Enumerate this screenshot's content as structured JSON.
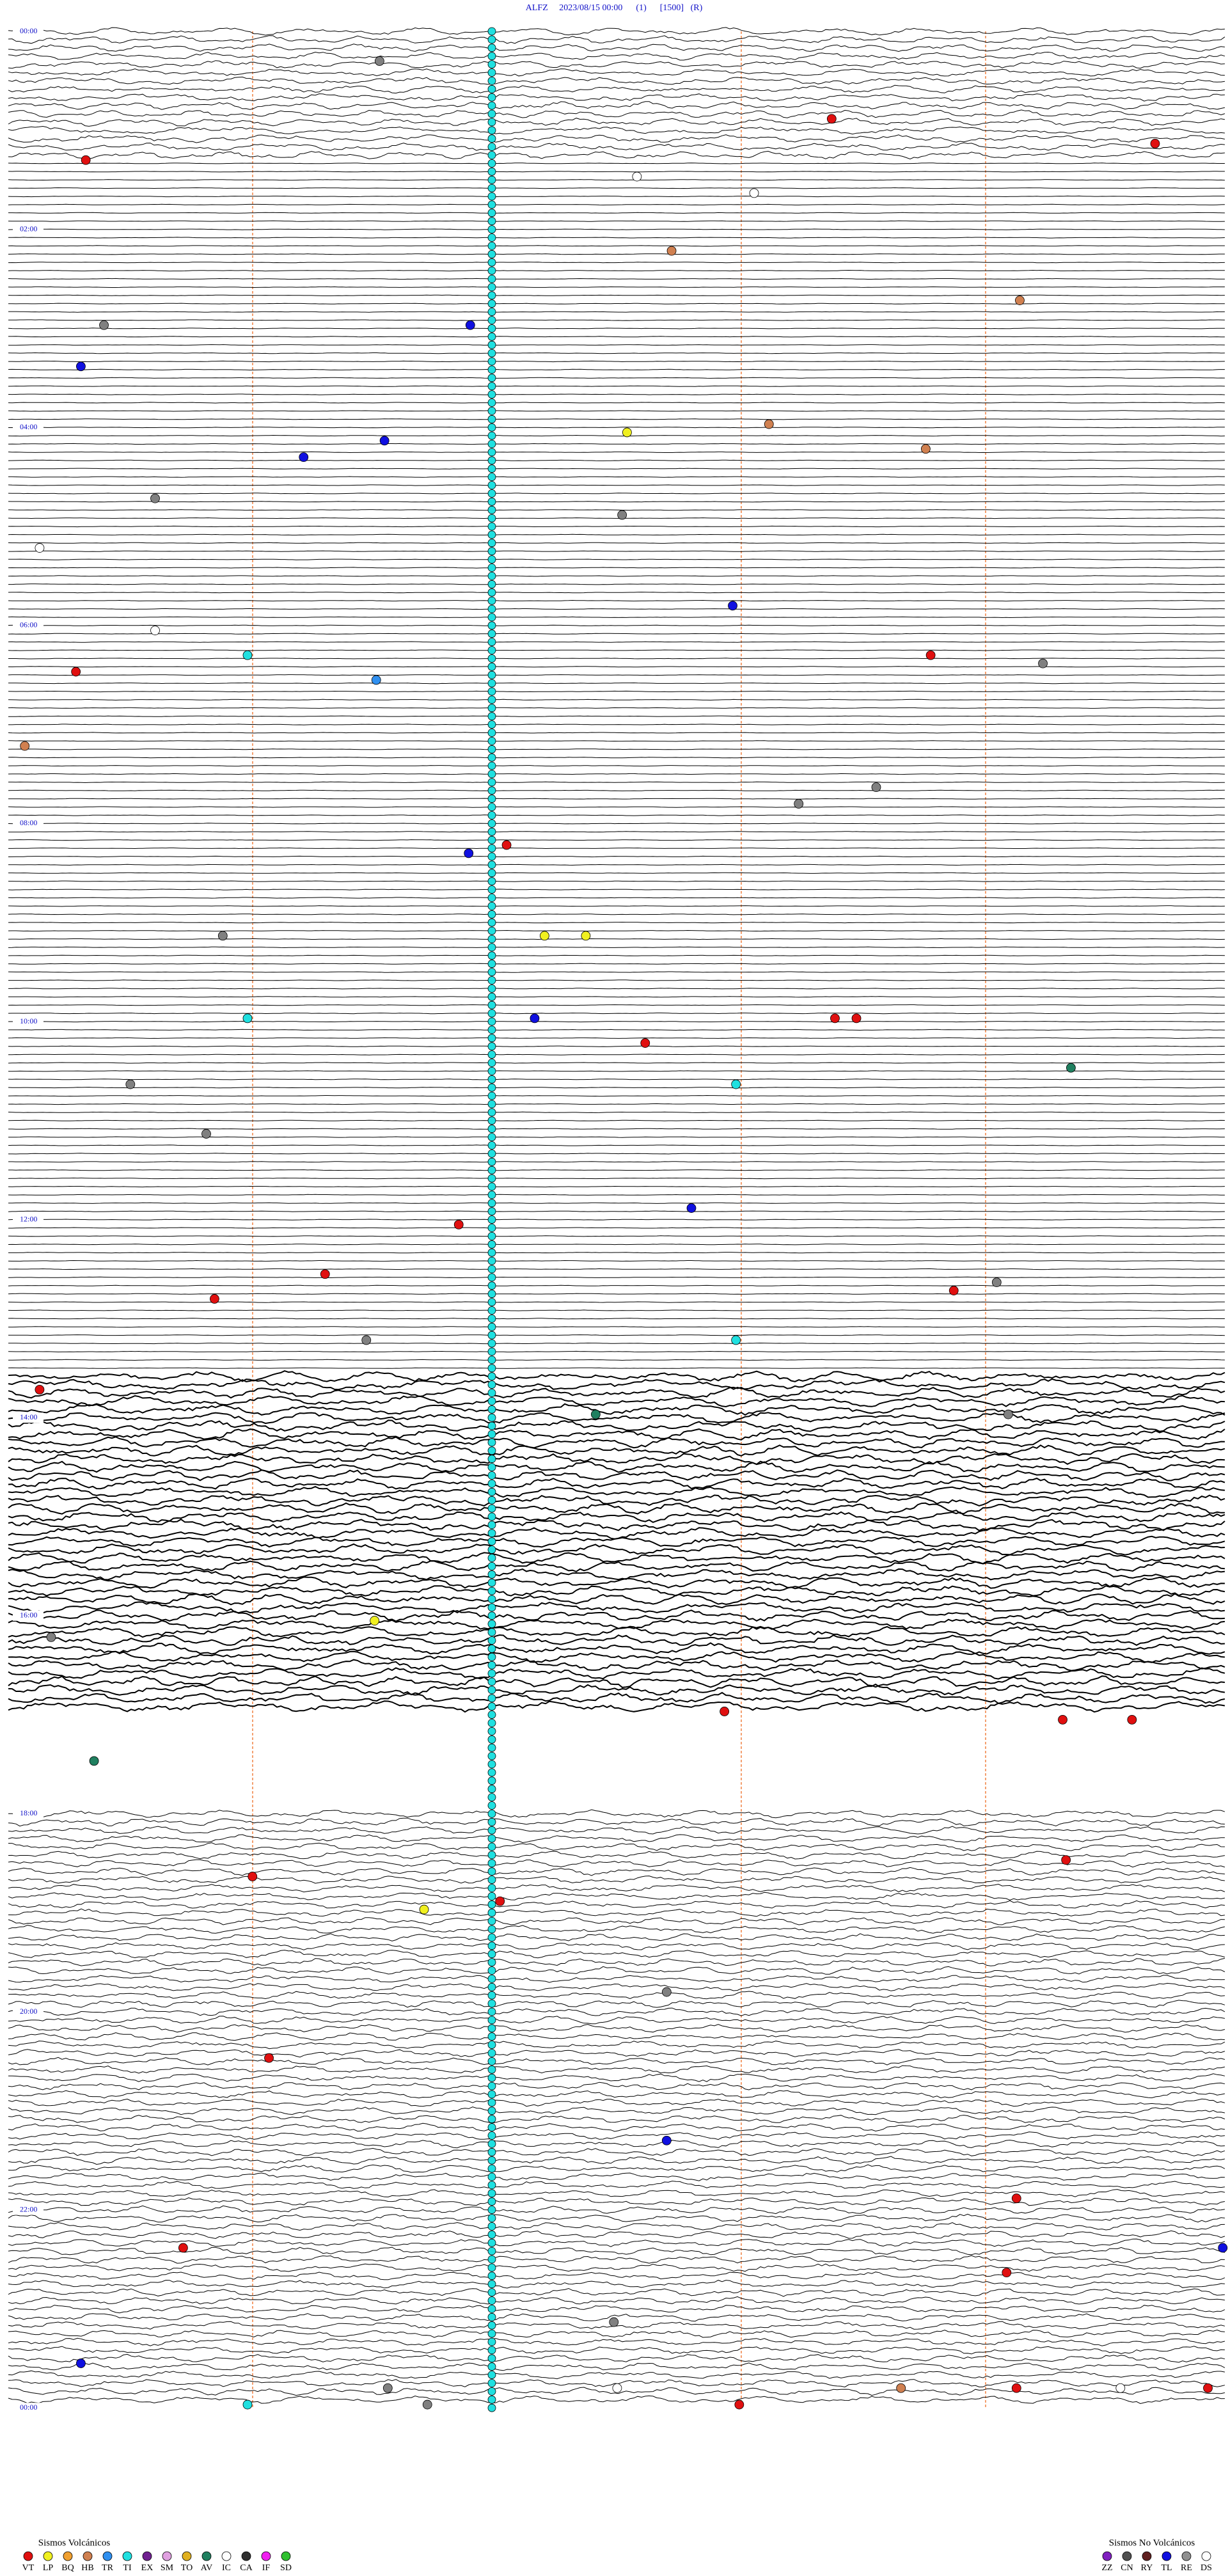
{
  "header": {
    "title": "ALFZ     2023/08/15 00:00      (1)      [1500]   (R)"
  },
  "hour_labels": [
    "00:00",
    "02:00",
    "04:00",
    "06:00",
    "08:00",
    "10:00",
    "12:00",
    "14:00",
    "16:00",
    "18:00",
    "20:00",
    "22:00",
    "00:00"
  ],
  "legend_volcanic": {
    "title": "Sismos Volcánicos",
    "items": [
      {
        "code": "VT",
        "color": "#e01010"
      },
      {
        "code": "LP",
        "color": "#f0f020"
      },
      {
        "code": "BQ",
        "color": "#f0a030"
      },
      {
        "code": "HB",
        "color": "#d08050"
      },
      {
        "code": "TR",
        "color": "#3090f0"
      },
      {
        "code": "TI",
        "color": "#20e0e0"
      },
      {
        "code": "EX",
        "color": "#702090"
      },
      {
        "code": "SM",
        "color": "#e0a0e0"
      },
      {
        "code": "TO",
        "color": "#e0b020"
      },
      {
        "code": "AV",
        "color": "#208060"
      },
      {
        "code": "IC",
        "color": "#ffffff"
      },
      {
        "code": "CA",
        "color": "#303030"
      },
      {
        "code": "IF",
        "color": "#f020f0"
      },
      {
        "code": "SD",
        "color": "#30c030"
      }
    ]
  },
  "legend_non_volcanic": {
    "title": "Sismos No Volcánicos",
    "items": [
      {
        "code": "ZZ",
        "color": "#8020c0"
      },
      {
        "code": "CN",
        "color": "#505050"
      },
      {
        "code": "RY",
        "color": "#602020"
      },
      {
        "code": "TL",
        "color": "#1010e0"
      },
      {
        "code": "RE",
        "color": "#909090"
      },
      {
        "code": "DS",
        "color": "#ffffff"
      }
    ]
  }
}
